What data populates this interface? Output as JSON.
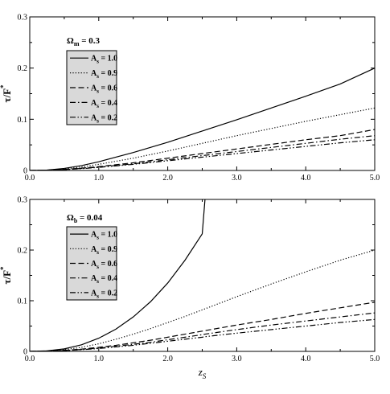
{
  "chart_data": [
    {
      "type": "line",
      "panel": "top",
      "annotation": {
        "symbol": "Ω",
        "sub": "m",
        "rest": " = 0.3"
      },
      "ylabel": {
        "main": "τ/F",
        "sup": "*"
      },
      "xlabel": "",
      "xlim": [
        0,
        5
      ],
      "ylim": [
        0,
        0.3
      ],
      "x_ticks": [
        "0.0",
        "1.0",
        "2.0",
        "3.0",
        "4.0",
        "5.0"
      ],
      "y_ticks": [
        "0",
        "0.1",
        "0.2",
        "0.3"
      ],
      "x_tick_values": [
        0,
        1,
        2,
        3,
        4,
        5
      ],
      "y_tick_values": [
        0,
        0.1,
        0.2,
        0.3
      ],
      "x": [
        0,
        0.25,
        0.5,
        0.75,
        1.0,
        1.5,
        2.0,
        2.5,
        3.0,
        3.5,
        4.0,
        4.5,
        5.0
      ],
      "series": [
        {
          "name": "A",
          "sub": "s",
          "rest": " = 1.0",
          "dash": "solid",
          "values": [
            0,
            0.0009,
            0.004,
            0.0095,
            0.017,
            0.035,
            0.055,
            0.077,
            0.099,
            0.122,
            0.145,
            0.169,
            0.2
          ]
        },
        {
          "name": "A",
          "sub": "s",
          "rest": " = 0.9",
          "dash": "dotted",
          "values": [
            0,
            0.0007,
            0.003,
            0.0068,
            0.012,
            0.024,
            0.038,
            0.053,
            0.068,
            0.082,
            0.096,
            0.109,
            0.122
          ]
        },
        {
          "name": "A",
          "sub": "s",
          "rest": " = 0.6",
          "dash": "dashed",
          "values": [
            0,
            0.0005,
            0.002,
            0.0045,
            0.0075,
            0.015,
            0.024,
            0.033,
            0.042,
            0.051,
            0.06,
            0.068,
            0.08
          ]
        },
        {
          "name": "A",
          "sub": "s",
          "rest": " = 0.4",
          "dash": "dashdot",
          "values": [
            0,
            0.0004,
            0.0018,
            0.004,
            0.0065,
            0.013,
            0.021,
            0.029,
            0.037,
            0.045,
            0.053,
            0.061,
            0.068
          ]
        },
        {
          "name": "A",
          "sub": "s",
          "rest": " = 0.2",
          "dash": "dashdotdot",
          "values": [
            0,
            0.0004,
            0.0016,
            0.0035,
            0.006,
            0.012,
            0.019,
            0.026,
            0.033,
            0.04,
            0.047,
            0.054,
            0.06
          ]
        }
      ]
    },
    {
      "type": "line",
      "panel": "bottom",
      "annotation": {
        "symbol": "Ω",
        "sub": "b",
        "rest": " = 0.04"
      },
      "ylabel": {
        "main": "τ/F",
        "sup": "*"
      },
      "xlabel": {
        "main": "z",
        "sub": "S"
      },
      "xlim": [
        0,
        5
      ],
      "ylim": [
        0,
        0.3
      ],
      "x_ticks": [
        "0.0",
        "1.0",
        "2.0",
        "3.0",
        "4.0",
        "5.0"
      ],
      "y_ticks": [
        "0",
        "0.1",
        "0.2",
        "0.3"
      ],
      "x_tick_values": [
        0,
        1,
        2,
        3,
        4,
        5
      ],
      "y_tick_values": [
        0,
        0.1,
        0.2,
        0.3
      ],
      "x": [
        0,
        0.25,
        0.5,
        0.75,
        1.0,
        1.25,
        1.5,
        1.75,
        2.0,
        2.25,
        2.5,
        2.54,
        3.0,
        3.5,
        4.0,
        4.5,
        5.0
      ],
      "series": [
        {
          "name": "A",
          "sub": "s",
          "rest": " = 1.0",
          "dash": "solid",
          "values": [
            0,
            0.001,
            0.005,
            0.013,
            0.026,
            0.044,
            0.068,
            0.098,
            0.135,
            0.18,
            0.232,
            0.3,
            null,
            null,
            null,
            null,
            null
          ]
        },
        {
          "name": "A",
          "sub": "s",
          "rest": " = 0.9",
          "dash": "dotted",
          "values": [
            0,
            0.0008,
            0.0035,
            0.008,
            0.015,
            0.024,
            0.034,
            0.045,
            0.057,
            0.069,
            0.082,
            0.084,
            0.108,
            0.133,
            0.157,
            0.18,
            0.2
          ]
        },
        {
          "name": "A",
          "sub": "s",
          "rest": " = 0.6",
          "dash": "dashed",
          "values": [
            0,
            0.0005,
            0.002,
            0.0045,
            0.008,
            0.012,
            0.017,
            0.022,
            0.028,
            0.034,
            0.04,
            0.041,
            0.052,
            0.063,
            0.075,
            0.086,
            0.097
          ]
        },
        {
          "name": "A",
          "sub": "s",
          "rest": " = 0.4",
          "dash": "dashdot",
          "values": [
            0,
            0.0004,
            0.0017,
            0.0038,
            0.0065,
            0.01,
            0.014,
            0.018,
            0.023,
            0.028,
            0.033,
            0.034,
            0.043,
            0.052,
            0.06,
            0.068,
            0.076
          ]
        },
        {
          "name": "A",
          "sub": "s",
          "rest": " = 0.2",
          "dash": "dashdotdot",
          "values": [
            0,
            0.0004,
            0.0015,
            0.0033,
            0.0057,
            0.0088,
            0.012,
            0.016,
            0.02,
            0.024,
            0.028,
            0.029,
            0.036,
            0.043,
            0.05,
            0.057,
            0.063
          ]
        }
      ]
    }
  ],
  "style": {
    "legend_bg": "#d9d9d9",
    "line_color": "#000000"
  }
}
